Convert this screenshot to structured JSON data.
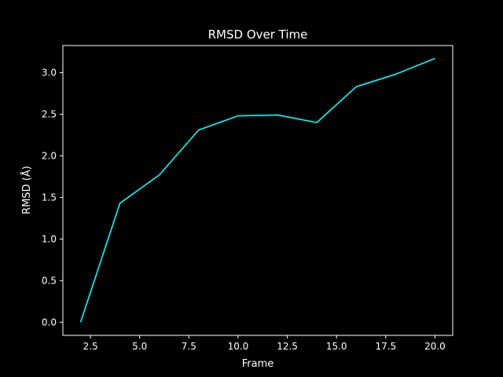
{
  "chart_data": {
    "type": "line",
    "title": "RMSD Over Time",
    "xlabel": "Frame",
    "ylabel": "RMSD (Å)",
    "xlim": [
      1.1,
      20.9
    ],
    "ylim": [
      -0.158,
      3.325
    ],
    "xticks": [
      2.5,
      5.0,
      7.5,
      10.0,
      12.5,
      15.0,
      17.5,
      20.0
    ],
    "xtick_labels": [
      "2.5",
      "5.0",
      "7.5",
      "10.0",
      "12.5",
      "15.0",
      "17.5",
      "20.0"
    ],
    "yticks": [
      0.0,
      0.5,
      1.0,
      1.5,
      2.0,
      2.5,
      3.0
    ],
    "ytick_labels": [
      "0.0",
      "0.5",
      "1.0",
      "1.5",
      "2.0",
      "2.5",
      "3.0"
    ],
    "grid": false,
    "series": [
      {
        "color": "#00ffff",
        "x": [
          2,
          4,
          6,
          8,
          10,
          12,
          14,
          16,
          18,
          20
        ],
        "values": [
          0.0,
          1.43,
          1.77,
          2.31,
          2.48,
          2.49,
          2.4,
          2.83,
          2.98,
          3.17
        ]
      }
    ],
    "colors": {
      "background": "#000000",
      "foreground": "#ffffff"
    }
  }
}
